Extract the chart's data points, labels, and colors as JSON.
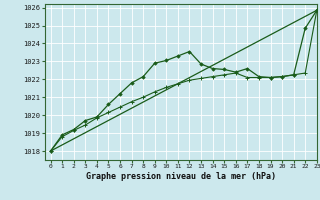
{
  "xlabel": "Graphe pression niveau de la mer (hPa)",
  "ylim": [
    1017.5,
    1026.2
  ],
  "xlim": [
    -0.5,
    23
  ],
  "yticks": [
    1018,
    1019,
    1020,
    1021,
    1022,
    1023,
    1024,
    1025,
    1026
  ],
  "xticks": [
    0,
    1,
    2,
    3,
    4,
    5,
    6,
    7,
    8,
    9,
    10,
    11,
    12,
    13,
    14,
    15,
    16,
    17,
    18,
    19,
    20,
    21,
    22,
    23
  ],
  "bg_color": "#cce8ed",
  "grid_color": "#b0d8de",
  "line_color": "#1a5c1a",
  "series_main": {
    "x": [
      0,
      1,
      2,
      3,
      4,
      5,
      6,
      7,
      8,
      9,
      10,
      11,
      12,
      13,
      14,
      15,
      16,
      17,
      18,
      19,
      20,
      21,
      22,
      23
    ],
    "y": [
      1018.0,
      1018.9,
      1019.2,
      1019.7,
      1019.9,
      1020.6,
      1021.2,
      1021.8,
      1022.15,
      1022.9,
      1023.05,
      1023.3,
      1023.55,
      1022.85,
      1022.6,
      1022.55,
      1022.4,
      1022.6,
      1022.15,
      1022.1,
      1022.15,
      1022.25,
      1024.85,
      1025.85
    ]
  },
  "series_smooth": {
    "x": [
      0,
      1,
      2,
      3,
      4,
      5,
      6,
      7,
      8,
      9,
      10,
      11,
      12,
      13,
      14,
      15,
      16,
      17,
      18,
      19,
      20,
      21,
      22,
      23
    ],
    "y": [
      1018.0,
      1018.8,
      1019.15,
      1019.45,
      1019.85,
      1020.15,
      1020.45,
      1020.75,
      1021.0,
      1021.3,
      1021.55,
      1021.75,
      1021.95,
      1022.05,
      1022.15,
      1022.25,
      1022.35,
      1022.1,
      1022.1,
      1022.1,
      1022.15,
      1022.25,
      1022.35,
      1025.85
    ]
  },
  "series_line": {
    "x": [
      0,
      23
    ],
    "y": [
      1018.0,
      1025.85
    ]
  }
}
